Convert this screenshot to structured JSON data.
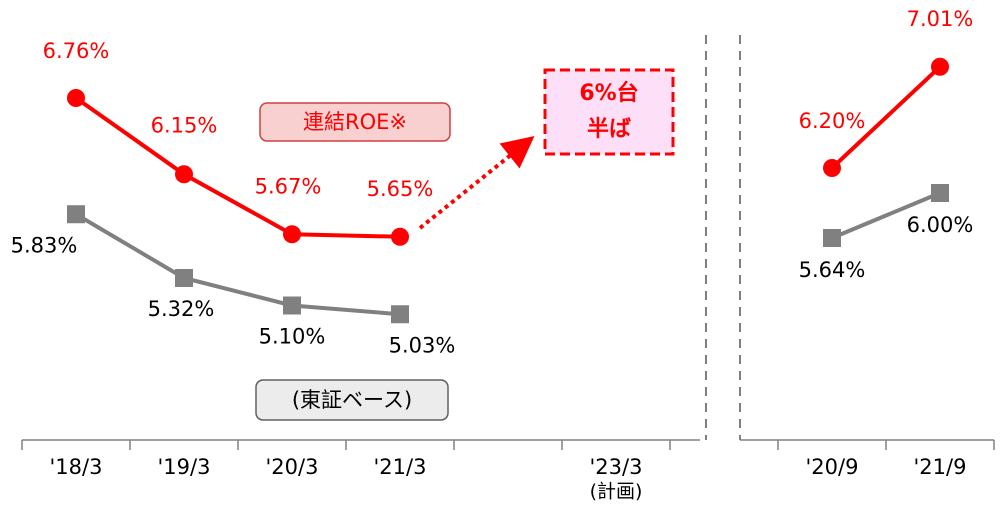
{
  "chart_data": [
    {
      "type": "line",
      "categories": [
        "'18/3",
        "'19/3",
        "'20/3",
        "'21/3",
        null,
        "'23/3"
      ],
      "category_notes": [
        null,
        null,
        null,
        null,
        null,
        "(計画)"
      ],
      "series": [
        {
          "name": "連結ROE※",
          "color": "#ff0000",
          "values": [
            6.76,
            6.15,
            5.67,
            5.65,
            null,
            null
          ],
          "value_labels": [
            "6.76%",
            "6.15%",
            "5.67%",
            "5.65%",
            null,
            null
          ]
        },
        {
          "name": "(東証ベース)",
          "color": "#808080",
          "values": [
            5.83,
            5.32,
            5.1,
            5.03,
            null,
            null
          ],
          "value_labels": [
            "5.83%",
            "5.32%",
            "5.10%",
            "5.03%",
            null,
            null
          ]
        }
      ],
      "target": [
        "6%台",
        "半ば"
      ],
      "ylim": [
        4.5,
        7.25
      ]
    },
    {
      "type": "line",
      "categories": [
        "'20/9",
        "'21/9"
      ],
      "series": [
        {
          "name": "連結ROE※",
          "color": "#ff0000",
          "values": [
            6.2,
            7.01
          ],
          "value_labels": [
            "6.20%",
            "7.01%"
          ]
        },
        {
          "name": "(東証ベース)",
          "color": "#808080",
          "values": [
            5.64,
            6.0
          ],
          "value_labels": [
            "5.64%",
            "6.00%"
          ]
        }
      ],
      "ylim": [
        4.5,
        7.25
      ]
    }
  ]
}
